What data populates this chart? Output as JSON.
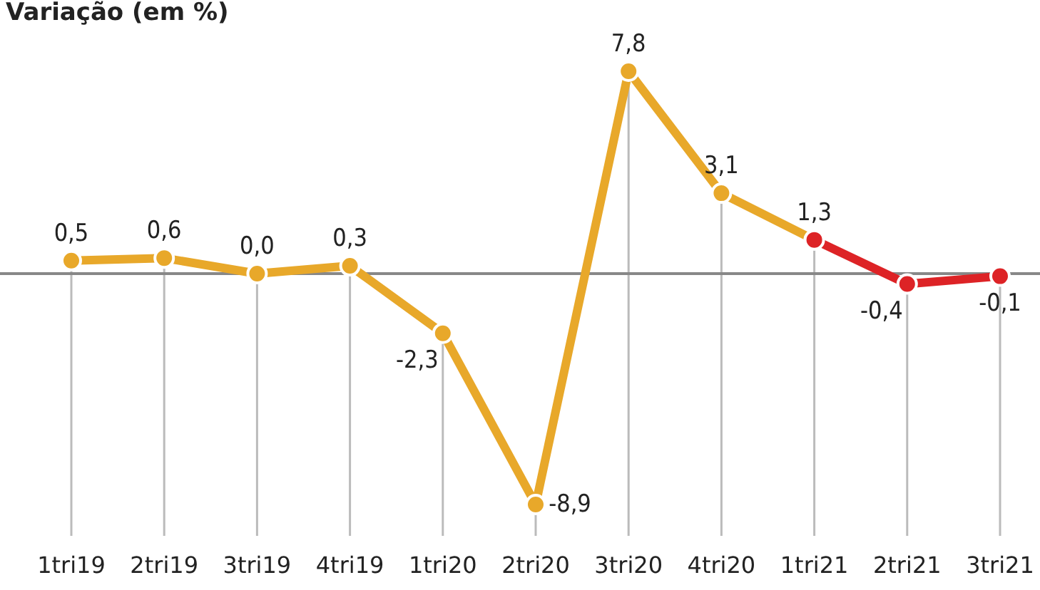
{
  "chart_data": {
    "type": "line",
    "title": "Variação (em %)",
    "categories": [
      "1tri19",
      "2tri19",
      "3tri19",
      "4tri19",
      "1tri20",
      "2tri20",
      "3tri20",
      "4tri20",
      "1tri21",
      "2tri21",
      "3tri21"
    ],
    "series": [
      {
        "color": "#e8a82a",
        "values": [
          0.5,
          0.6,
          0.0,
          0.3,
          -2.3,
          -8.9,
          7.8,
          3.1,
          1.3,
          null,
          null
        ],
        "value_labels": [
          "0,5",
          "0,6",
          "0,0",
          "0,3",
          "-2,3",
          "-8,9",
          "7,8",
          "3,1",
          null,
          null,
          null
        ]
      },
      {
        "color": "#dd2326",
        "values": [
          null,
          null,
          null,
          null,
          null,
          null,
          null,
          null,
          1.3,
          -0.4,
          -0.1
        ],
        "value_labels": [
          null,
          null,
          null,
          null,
          null,
          null,
          null,
          null,
          "1,3",
          "-0,4",
          "-0,1"
        ]
      }
    ],
    "ref_lines": [
      {
        "axis": "y",
        "value": 0,
        "color": "#888888"
      }
    ],
    "grid": "x",
    "marker": "circle",
    "line_style": "solid"
  }
}
